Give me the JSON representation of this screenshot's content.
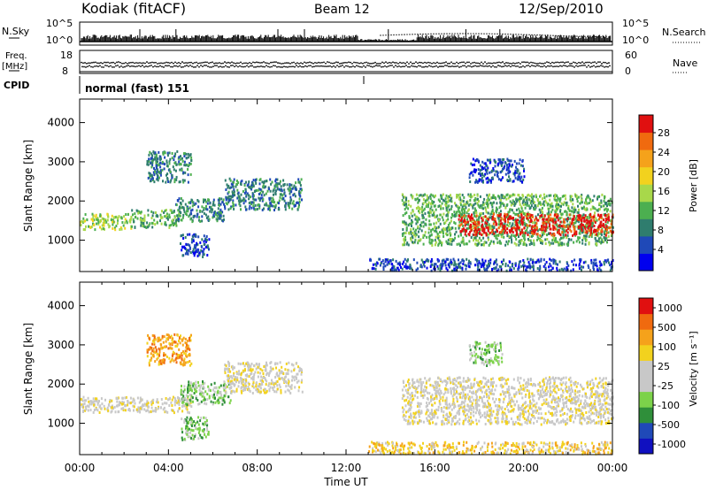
{
  "header": {
    "station": "Kodiak (fitACF)",
    "beam": "Beam 12",
    "date": "12/Sep/2010"
  },
  "top_panels": {
    "nsky_label": "N.Sky",
    "nsearch_label": "N.Search",
    "scale_top": "10^5",
    "scale_bottom": "10^0",
    "freq_label_1": "Freq.",
    "freq_label_2": "[MHz]",
    "freq_ticks": [
      "18",
      "8"
    ],
    "nave_ticks": [
      "60",
      "0"
    ],
    "nave_label": "Nave",
    "cpid_label": "CPID",
    "cpid_text": "normal (fast) 151"
  },
  "colors": {
    "power_scale": [
      "#0000ee",
      "#1f49b8",
      "#2f7d6e",
      "#4caf50",
      "#a8d84a",
      "#f2d21e",
      "#f5a21b",
      "#f06a0f",
      "#e01010"
    ],
    "velocity_scale": [
      "#e01010",
      "#f06a0f",
      "#f5a21b",
      "#f2d21e",
      "#c8c8c8",
      "#c8c8c8",
      "#7cd24a",
      "#2f8f3a",
      "#1f49b8",
      "#1010c0"
    ]
  },
  "chart_data": [
    {
      "type": "heatmap",
      "panel": "power",
      "ylabel": "Slant Range [km]",
      "ylim": [
        200,
        4600
      ],
      "y_ticks": [
        1000,
        2000,
        3000,
        4000
      ],
      "xlim": [
        0,
        24
      ],
      "colorbar_label": "Power [dB]",
      "colorbar_ticks": [
        "4",
        "8",
        "12",
        "16",
        "20",
        "24",
        "28"
      ],
      "regions": [
        {
          "t0": 0.0,
          "t1": 2.3,
          "r0": 1300,
          "r1": 1700,
          "level": 4
        },
        {
          "t0": 2.3,
          "t1": 4.5,
          "r0": 1350,
          "r1": 1800,
          "level": 3
        },
        {
          "t0": 3.0,
          "t1": 5.0,
          "r0": 2500,
          "r1": 3300,
          "level": 2
        },
        {
          "t0": 4.3,
          "t1": 6.5,
          "r0": 1500,
          "r1": 2100,
          "level": 2
        },
        {
          "t0": 4.5,
          "t1": 5.8,
          "r0": 600,
          "r1": 1200,
          "level": 1
        },
        {
          "t0": 6.5,
          "t1": 10.0,
          "r0": 1800,
          "r1": 2600,
          "level": 2
        },
        {
          "t0": 13.0,
          "t1": 24.0,
          "r0": 250,
          "r1": 550,
          "level": 1
        },
        {
          "t0": 14.5,
          "t1": 24.0,
          "r0": 900,
          "r1": 2200,
          "level": 3
        },
        {
          "t0": 17.0,
          "t1": 24.0,
          "r0": 1150,
          "r1": 1700,
          "level": 8
        },
        {
          "t0": 17.5,
          "t1": 20.0,
          "r0": 2500,
          "r1": 3100,
          "level": 1
        }
      ]
    },
    {
      "type": "heatmap",
      "panel": "velocity",
      "ylabel": "Slant Range [km]",
      "ylim": [
        200,
        4600
      ],
      "y_ticks": [
        1000,
        2000,
        3000,
        4000
      ],
      "xlim": [
        0,
        24
      ],
      "xlabel": "Time UT",
      "x_tick_labels": [
        "00:00",
        "04:00",
        "08:00",
        "12:00",
        "16:00",
        "20:00",
        "00:00"
      ],
      "colorbar_label": "Velocity [m s⁻¹]",
      "colorbar_ticks": [
        "1000",
        "500",
        "100",
        "25",
        "-25",
        "-100",
        "-500",
        "-1000"
      ],
      "regions": [
        {
          "t0": 0.0,
          "t1": 5.0,
          "r0": 1300,
          "r1": 1700,
          "level": 4
        },
        {
          "t0": 3.0,
          "t1": 5.0,
          "r0": 2500,
          "r1": 3300,
          "level": 2
        },
        {
          "t0": 4.5,
          "t1": 6.8,
          "r0": 1500,
          "r1": 2100,
          "level": 6
        },
        {
          "t0": 4.5,
          "t1": 5.8,
          "r0": 600,
          "r1": 1200,
          "level": 6
        },
        {
          "t0": 6.5,
          "t1": 10.0,
          "r0": 1800,
          "r1": 2600,
          "level": 4
        },
        {
          "t0": 13.0,
          "t1": 24.0,
          "r0": 250,
          "r1": 550,
          "level": 3
        },
        {
          "t0": 14.5,
          "t1": 24.0,
          "r0": 1000,
          "r1": 2200,
          "level": 4
        },
        {
          "t0": 17.5,
          "t1": 19.0,
          "r0": 2500,
          "r1": 3100,
          "level": 6
        }
      ]
    }
  ]
}
